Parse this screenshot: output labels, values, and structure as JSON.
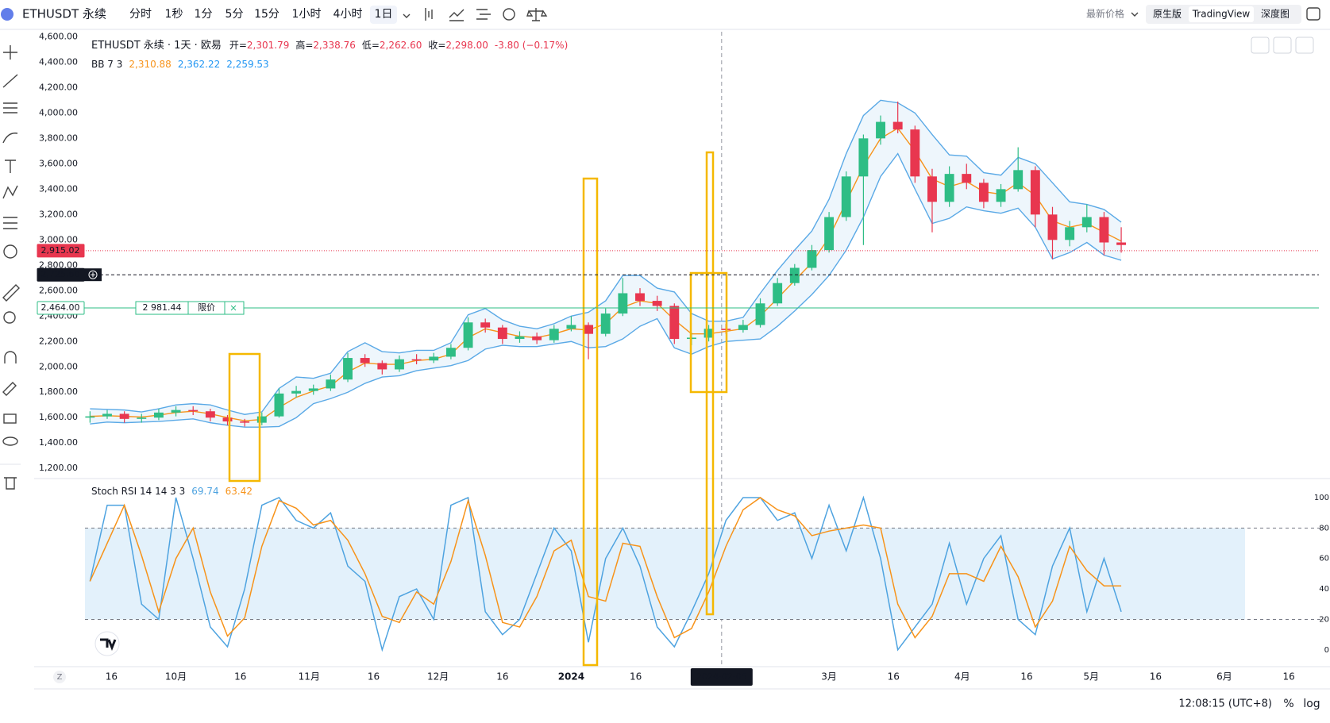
{
  "toolbar": {
    "symbol": "ETHUSDT 永续",
    "intervals": [
      "分时",
      "1秒",
      "1分",
      "5分",
      "15分",
      "1小时",
      "4小时",
      "1日"
    ],
    "selected_interval": "1日",
    "price_source": "最新价格",
    "views": [
      "原生版",
      "TradingView",
      "深度图"
    ],
    "selected_view": "TradingView"
  },
  "chart_data": [
    {
      "type": "candlestick",
      "title": "ETHUSDT 永续 · 1天 · 欧易",
      "ohlc_legend": [
        {
          "label": "开=",
          "value": "2,301.79"
        },
        {
          "label": "高=",
          "value": "2,338.76"
        },
        {
          "label": "低=",
          "value": "2,262.60"
        },
        {
          "label": "收=",
          "value": "2,298.00"
        }
      ],
      "change": "-3.80 (−0.17%)",
      "up_color": "#2ebd85",
      "down_color": "#e8364f",
      "x": [
        10,
        14,
        18,
        22,
        26,
        30,
        34,
        38,
        42,
        46,
        50,
        54,
        58,
        62,
        66,
        70,
        74,
        78,
        82,
        86,
        90,
        94,
        98,
        102,
        106,
        110,
        114,
        118,
        122,
        126,
        130,
        134,
        138,
        142,
        146,
        150,
        154,
        158,
        162,
        166,
        170,
        174,
        178,
        182,
        186,
        190,
        194,
        198,
        202,
        206,
        210,
        214,
        218,
        222,
        226,
        230,
        234,
        238,
        242,
        246,
        250
      ],
      "ohlc": [
        [
          1600,
          1650,
          1560,
          1610
        ],
        [
          1610,
          1660,
          1590,
          1630
        ],
        [
          1630,
          1650,
          1560,
          1590
        ],
        [
          1590,
          1630,
          1560,
          1600
        ],
        [
          1600,
          1670,
          1580,
          1640
        ],
        [
          1640,
          1690,
          1610,
          1660
        ],
        [
          1660,
          1690,
          1620,
          1650
        ],
        [
          1650,
          1670,
          1570,
          1600
        ],
        [
          1600,
          1620,
          1540,
          1570
        ],
        [
          1570,
          1590,
          1530,
          1560
        ],
        [
          1560,
          1640,
          1540,
          1610
        ],
        [
          1610,
          1830,
          1600,
          1790
        ],
        [
          1790,
          1850,
          1760,
          1810
        ],
        [
          1810,
          1860,
          1780,
          1830
        ],
        [
          1830,
          1940,
          1810,
          1900
        ],
        [
          1900,
          2110,
          1880,
          2070
        ],
        [
          2070,
          2100,
          2000,
          2030
        ],
        [
          2030,
          2050,
          1940,
          1980
        ],
        [
          1980,
          2090,
          1960,
          2060
        ],
        [
          2060,
          2100,
          2020,
          2050
        ],
        [
          2050,
          2110,
          2030,
          2080
        ],
        [
          2080,
          2180,
          2060,
          2150
        ],
        [
          2150,
          2390,
          2130,
          2350
        ],
        [
          2350,
          2380,
          2270,
          2310
        ],
        [
          2310,
          2330,
          2180,
          2220
        ],
        [
          2220,
          2280,
          2190,
          2240
        ],
        [
          2240,
          2270,
          2180,
          2210
        ],
        [
          2210,
          2330,
          2190,
          2300
        ],
        [
          2300,
          2400,
          2280,
          2330
        ],
        [
          2330,
          2350,
          2060,
          2260
        ],
        [
          2260,
          2460,
          2240,
          2420
        ],
        [
          2420,
          2700,
          2400,
          2580
        ],
        [
          2580,
          2620,
          2480,
          2520
        ],
        [
          2520,
          2560,
          2440,
          2480
        ],
        [
          2480,
          2500,
          2180,
          2220
        ],
        [
          2220,
          2270,
          2170,
          2230
        ],
        [
          2230,
          2330,
          2200,
          2300
        ],
        [
          2300,
          2340,
          2260,
          2290
        ],
        [
          2290,
          2370,
          2270,
          2330
        ],
        [
          2330,
          2540,
          2310,
          2500
        ],
        [
          2500,
          2700,
          2480,
          2660
        ],
        [
          2660,
          2810,
          2640,
          2780
        ],
        [
          2780,
          2960,
          2760,
          2920
        ],
        [
          2920,
          3220,
          2900,
          3180
        ],
        [
          3180,
          3540,
          3150,
          3500
        ],
        [
          3500,
          3830,
          2960,
          3800
        ],
        [
          3800,
          3980,
          3750,
          3930
        ],
        [
          3930,
          4090,
          3840,
          3870
        ],
        [
          3870,
          3900,
          3450,
          3500
        ],
        [
          3500,
          3560,
          3060,
          3300
        ],
        [
          3300,
          3580,
          3260,
          3520
        ],
        [
          3520,
          3600,
          3400,
          3450
        ],
        [
          3450,
          3480,
          3250,
          3300
        ],
        [
          3300,
          3440,
          3260,
          3400
        ],
        [
          3400,
          3730,
          3380,
          3550
        ],
        [
          3550,
          3580,
          3100,
          3200
        ],
        [
          3200,
          3260,
          2850,
          3000
        ],
        [
          3000,
          3150,
          2950,
          3100
        ],
        [
          3100,
          3280,
          3060,
          3180
        ],
        [
          3180,
          3220,
          2880,
          2980
        ],
        [
          2980,
          3100,
          2900,
          2960
        ]
      ],
      "bollinger": {
        "label": "BB 7 3",
        "legend_values": [
          {
            "text": "2,310.88",
            "color": "#f7931a"
          },
          {
            "text": "2,362.22",
            "color": "#2196f3"
          },
          {
            "text": "2,259.53",
            "color": "#2196f3"
          }
        ],
        "middle_color": "#f7931a",
        "band_color": "#5aa9e6",
        "upper": [
          1670,
          1665,
          1660,
          1645,
          1670,
          1700,
          1710,
          1700,
          1660,
          1625,
          1645,
          1830,
          1920,
          1910,
          1950,
          2120,
          2190,
          2120,
          2110,
          2130,
          2130,
          2190,
          2410,
          2460,
          2370,
          2320,
          2300,
          2340,
          2400,
          2430,
          2520,
          2720,
          2720,
          2620,
          2590,
          2420,
          2360,
          2360,
          2390,
          2580,
          2760,
          2920,
          3070,
          3320,
          3680,
          3980,
          4100,
          4080,
          4000,
          3830,
          3670,
          3660,
          3530,
          3510,
          3650,
          3600,
          3450,
          3300,
          3280,
          3240,
          3140
        ],
        "middle": [
          1610,
          1615,
          1610,
          1605,
          1620,
          1640,
          1650,
          1630,
          1600,
          1575,
          1585,
          1680,
          1760,
          1810,
          1850,
          1960,
          2030,
          2020,
          2020,
          2050,
          2060,
          2100,
          2230,
          2300,
          2270,
          2240,
          2230,
          2260,
          2300,
          2290,
          2340,
          2470,
          2520,
          2500,
          2370,
          2260,
          2260,
          2280,
          2300,
          2400,
          2540,
          2680,
          2820,
          3020,
          3300,
          3580,
          3800,
          3880,
          3700,
          3480,
          3420,
          3460,
          3380,
          3360,
          3450,
          3350,
          3150,
          3100,
          3130,
          3060,
          2990
        ],
        "lower": [
          1550,
          1565,
          1560,
          1565,
          1570,
          1580,
          1590,
          1560,
          1540,
          1525,
          1525,
          1530,
          1600,
          1710,
          1750,
          1800,
          1870,
          1920,
          1930,
          1970,
          1990,
          2010,
          2050,
          2140,
          2170,
          2160,
          2160,
          2180,
          2200,
          2150,
          2160,
          2220,
          2320,
          2380,
          2150,
          2100,
          2160,
          2200,
          2210,
          2220,
          2320,
          2440,
          2570,
          2720,
          2920,
          3180,
          3500,
          3680,
          3400,
          3130,
          3170,
          3260,
          3230,
          3210,
          3250,
          3100,
          2850,
          2900,
          2980,
          2880,
          2840
        ]
      },
      "xlim": [
        -3,
        296
      ],
      "ylim": [
        1120,
        4640
      ],
      "yticks": [
        {
          "value": 4600,
          "label": "4,600.00"
        },
        {
          "value": 4400,
          "label": "4,400.00"
        },
        {
          "value": 4200,
          "label": "4,200.00"
        },
        {
          "value": 4000,
          "label": "4,000.00"
        },
        {
          "value": 3800,
          "label": "3,800.00"
        },
        {
          "value": 3600,
          "label": "3,600.00"
        },
        {
          "value": 3400,
          "label": "3,400.00"
        },
        {
          "value": 3200,
          "label": "3,200.00"
        },
        {
          "value": 3000,
          "label": "3,000.00"
        },
        {
          "value": 2800,
          "label": "2,800.00"
        },
        {
          "value": 2600,
          "label": "2,600.00"
        },
        {
          "value": 2400,
          "label": "2,400.00"
        },
        {
          "value": 2200,
          "label": "2,200.00"
        },
        {
          "value": 2000,
          "label": "2,000.00"
        },
        {
          "value": 1800,
          "label": "1,800.00"
        },
        {
          "value": 1600,
          "label": "1,600.00"
        },
        {
          "value": 1400,
          "label": "1,400.00"
        },
        {
          "value": 1200,
          "label": "1,200.00"
        }
      ],
      "price_lines": [
        {
          "value": 2915.02,
          "label": "2,915.02",
          "color": "#e8364f",
          "style": "dotted"
        },
        {
          "value": 2725.6,
          "label": "2,725.60",
          "color": "#131722",
          "style": "dashed"
        },
        {
          "value": 2464,
          "label": "2,464.00",
          "color": "#2ebd85",
          "style": "solid",
          "order_price": "2 981.44",
          "order_type": "限价"
        }
      ],
      "crosshair": {
        "x": 157,
        "label": "2024-02-05"
      },
      "xticks": [
        {
          "value": 15,
          "label": "16"
        },
        {
          "value": 30,
          "label": "10月"
        },
        {
          "value": 45,
          "label": "16"
        },
        {
          "value": 61,
          "label": "11月"
        },
        {
          "value": 76,
          "label": "16"
        },
        {
          "value": 91,
          "label": "12月"
        },
        {
          "value": 106,
          "label": "16"
        },
        {
          "value": 122,
          "label": "2024"
        },
        {
          "value": 137,
          "label": "16"
        },
        {
          "value": 182,
          "label": "3月"
        },
        {
          "value": 197,
          "label": "16"
        },
        {
          "value": 213,
          "label": "4月"
        },
        {
          "value": 228,
          "label": "16"
        },
        {
          "value": 243,
          "label": "5月"
        },
        {
          "value": 258,
          "label": "16"
        },
        {
          "value": 274,
          "label": "6月"
        },
        {
          "value": 289,
          "label": "16"
        }
      ],
      "grid": false
    },
    {
      "type": "line",
      "title": "Stoch RSI 14 14 3 3",
      "xlim": [
        -3,
        296
      ],
      "ylim": [
        -10,
        112.5
      ],
      "yticks": [
        0,
        20,
        40,
        60,
        80,
        100
      ],
      "bands": [
        20,
        80
      ],
      "band_color": "#e3f1fb",
      "x": [
        10,
        14,
        18,
        22,
        26,
        30,
        34,
        38,
        42,
        46,
        50,
        54,
        58,
        62,
        66,
        70,
        74,
        78,
        82,
        86,
        90,
        94,
        98,
        102,
        106,
        110,
        114,
        118,
        122,
        126,
        130,
        134,
        138,
        142,
        146,
        150,
        154,
        158,
        162,
        166,
        170,
        174,
        178,
        182,
        186,
        190,
        194,
        198,
        202,
        206,
        210,
        214,
        218,
        222,
        226,
        230,
        234,
        238,
        242,
        246,
        250
      ],
      "series": [
        {
          "legend_value": "69.74",
          "color": "#4ea3e0",
          "values": [
            45,
            95,
            95,
            30,
            20,
            100,
            60,
            15,
            2,
            40,
            95,
            100,
            85,
            80,
            90,
            55,
            45,
            0,
            35,
            40,
            20,
            95,
            100,
            25,
            10,
            20,
            50,
            80,
            65,
            5,
            60,
            80,
            55,
            15,
            2,
            25,
            50,
            85,
            100,
            100,
            85,
            90,
            60,
            95,
            65,
            100,
            60,
            0,
            15,
            30,
            70,
            30,
            60,
            75,
            20,
            10,
            55,
            80,
            25,
            60,
            25
          ]
        },
        {
          "legend_value": "63.42",
          "color": "#f7931a",
          "values": [
            45,
            70,
            95,
            62,
            25,
            60,
            80,
            38,
            9,
            21,
            68,
            98,
            93,
            82,
            85,
            72,
            50,
            22,
            18,
            38,
            30,
            58,
            98,
            62,
            18,
            15,
            35,
            65,
            72,
            35,
            32,
            70,
            68,
            35,
            8,
            14,
            38,
            68,
            92,
            100,
            92,
            88,
            75,
            78,
            80,
            82,
            80,
            30,
            8,
            22,
            50,
            50,
            45,
            68,
            48,
            15,
            32,
            68,
            52,
            42,
            42
          ]
        }
      ]
    }
  ],
  "status": {
    "time": "12:08:15 (UTC+8)",
    "percent": "%",
    "log": "log"
  }
}
